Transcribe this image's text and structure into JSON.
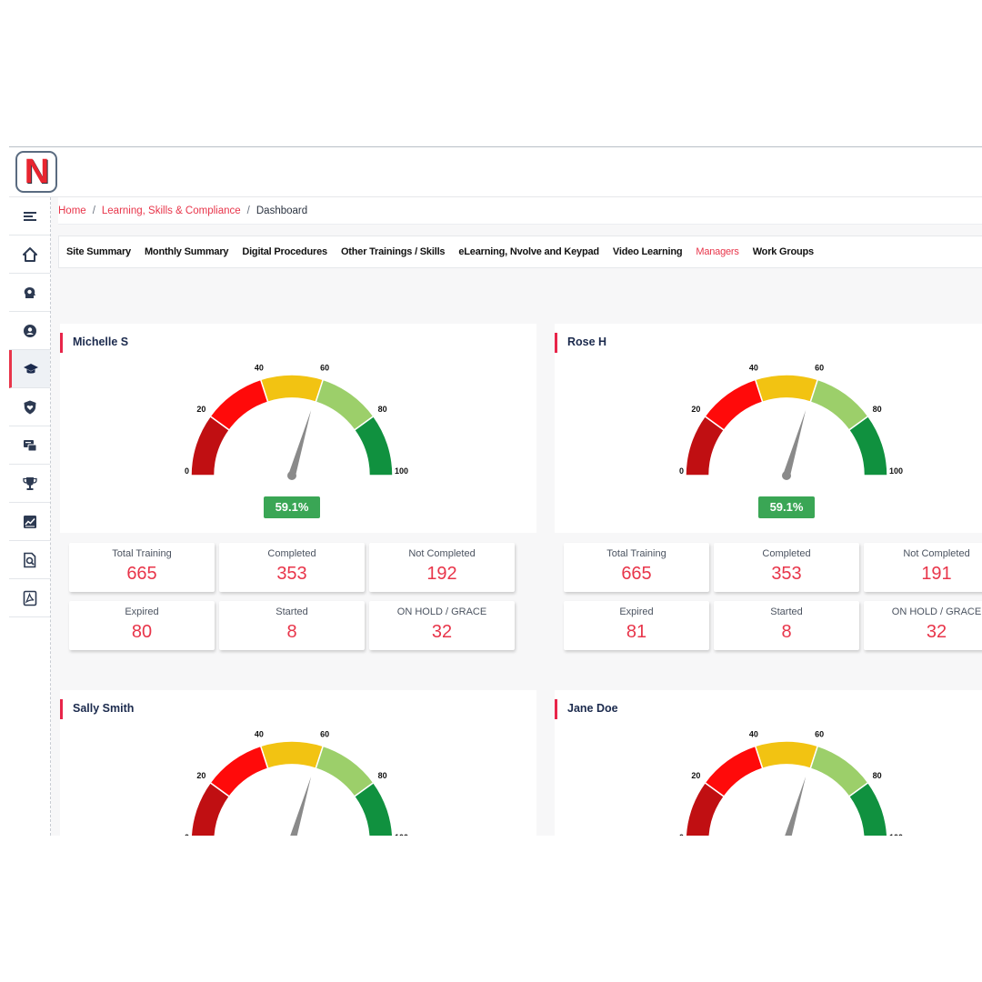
{
  "app": {
    "logo_letter": "N"
  },
  "breadcrumb": {
    "home": "Home",
    "section": "Learning, Skills & Compliance",
    "current": "Dashboard",
    "separator": "/"
  },
  "sidebar": {
    "items": [
      {
        "icon": "menu-icon"
      },
      {
        "icon": "home-icon"
      },
      {
        "icon": "brain-gear-icon"
      },
      {
        "icon": "user-gear-icon"
      },
      {
        "icon": "graduation-cap-icon",
        "active": true
      },
      {
        "icon": "shield-heart-icon"
      },
      {
        "icon": "chat-icon"
      },
      {
        "icon": "trophy-icon"
      },
      {
        "icon": "chart-icon"
      },
      {
        "icon": "document-search-icon"
      },
      {
        "icon": "pdf-icon"
      }
    ]
  },
  "tabs": [
    {
      "label": "Site Summary"
    },
    {
      "label": "Monthly Summary"
    },
    {
      "label": "Digital Procedures"
    },
    {
      "label": "Other Trainings / Skills"
    },
    {
      "label": "eLearning, Nvolve and Keypad"
    },
    {
      "label": "Video Learning"
    },
    {
      "label": "Managers",
      "active": true
    },
    {
      "label": "Work Groups"
    }
  ],
  "gauge_scale": {
    "ticks": [
      "0",
      "20",
      "40",
      "60",
      "80",
      "100"
    ],
    "band_colors": [
      "#c00f12",
      "#ff0a0a",
      "#f2c312",
      "#9ccf6a",
      "#10913f"
    ],
    "needle_color": "#8a8a8a"
  },
  "managers": [
    {
      "name": "Michelle S",
      "percent_label": "59.1%",
      "percent_value": 59.1,
      "stats": [
        {
          "label": "Total Training",
          "value": "665"
        },
        {
          "label": "Completed",
          "value": "353"
        },
        {
          "label": "Not Completed",
          "value": "192"
        },
        {
          "label": "Expired",
          "value": "80"
        },
        {
          "label": "Started",
          "value": "8"
        },
        {
          "label": "ON HOLD / GRACE",
          "value": "32"
        }
      ]
    },
    {
      "name": "Rose H",
      "percent_label": "59.1%",
      "percent_value": 59.1,
      "stats": [
        {
          "label": "Total Training",
          "value": "665"
        },
        {
          "label": "Completed",
          "value": "353"
        },
        {
          "label": "Not Completed",
          "value": "191"
        },
        {
          "label": "Expired",
          "value": "81"
        },
        {
          "label": "Started",
          "value": "8"
        },
        {
          "label": "ON HOLD / GRACE",
          "value": "32"
        }
      ]
    },
    {
      "name": "Sally Smith"
    },
    {
      "name": "Jane Doe"
    }
  ],
  "colors": {
    "accent": "#e8354a",
    "percent_badge": "#3aa655"
  }
}
